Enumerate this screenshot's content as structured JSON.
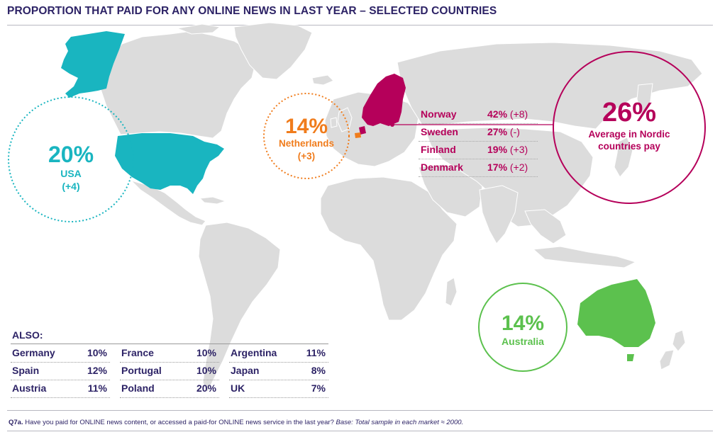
{
  "title": "PROPORTION THAT PAID FOR ANY ONLINE NEWS IN LAST YEAR – SELECTED COUNTRIES",
  "colors": {
    "title": "#2d2366",
    "usa": "#19b5c0",
    "netherlands": "#f07c1c",
    "nordic": "#b5005a",
    "australia": "#5cc14e",
    "land": "#dcdcdc"
  },
  "highlights": {
    "usa": {
      "pct": "20%",
      "country": "USA",
      "change": "(+4)"
    },
    "netherlands": {
      "pct": "14%",
      "country": "Netherlands",
      "change": "(+3)"
    },
    "nordic": {
      "pct": "26%",
      "line1": "Average in Nordic",
      "line2": "countries pay"
    },
    "australia": {
      "pct": "14%",
      "country": "Australia"
    }
  },
  "nordic_table": [
    {
      "country": "Norway",
      "value": "42%",
      "change": "(+8)"
    },
    {
      "country": "Sweden",
      "value": "27%",
      "change": "(-)"
    },
    {
      "country": "Finland",
      "value": "19%",
      "change": "(+3)"
    },
    {
      "country": "Denmark",
      "value": "17%",
      "change": "(+2)"
    }
  ],
  "also": {
    "title": "ALSO:",
    "columns": [
      [
        {
          "country": "Germany",
          "value": "10%"
        },
        {
          "country": "Spain",
          "value": "12%"
        },
        {
          "country": "Austria",
          "value": "11%"
        }
      ],
      [
        {
          "country": "France",
          "value": "10%"
        },
        {
          "country": "Portugal",
          "value": "10%"
        },
        {
          "country": "Poland",
          "value": "20%"
        }
      ],
      [
        {
          "country": "Argentina",
          "value": "11%"
        },
        {
          "country": "Japan",
          "value": "8%"
        },
        {
          "country": "UK",
          "value": "7%"
        }
      ]
    ]
  },
  "footnote": {
    "label": "Q7a.",
    "question": " Have you paid for ONLINE news content, or accessed a paid-for ONLINE news service in the last year? ",
    "base": "Base: Total sample in each market ≈ 2000."
  }
}
